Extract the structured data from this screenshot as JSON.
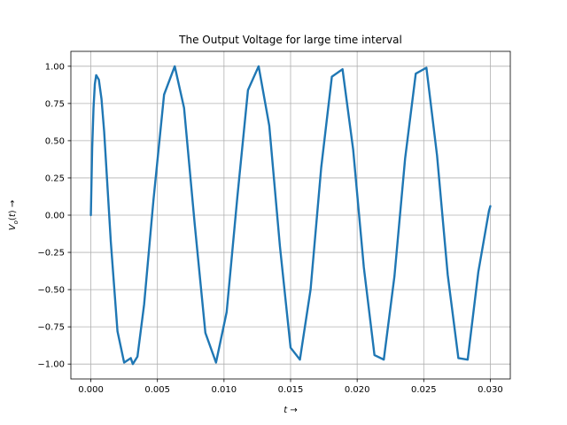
{
  "chart_data": {
    "type": "line",
    "title": "The Output Voltage for large time interval",
    "xlabel": "t →",
    "ylabel": "V_o(t) →",
    "xlim": [
      -0.0015,
      0.0315
    ],
    "ylim": [
      -1.1,
      1.1
    ],
    "x_ticks": [
      0.0,
      0.005,
      0.01,
      0.015,
      0.02,
      0.025,
      0.03
    ],
    "x_tick_labels": [
      "0.000",
      "0.005",
      "0.010",
      "0.015",
      "0.020",
      "0.025",
      "0.030"
    ],
    "y_ticks": [
      -1.0,
      -0.75,
      -0.5,
      -0.25,
      0.0,
      0.25,
      0.5,
      0.75,
      1.0
    ],
    "y_tick_labels": [
      "−1.00",
      "−0.75",
      "−0.50",
      "−0.25",
      "0.00",
      "0.25",
      "0.50",
      "0.75",
      "1.00"
    ],
    "grid": true,
    "line_color": "#1f77b4",
    "series": [
      {
        "x": [
          0.0,
          0.0001,
          0.0002,
          0.0003,
          0.0004,
          0.0006,
          0.0008,
          0.001,
          0.0015,
          0.002,
          0.0025,
          0.003,
          0.00315,
          0.0035,
          0.004,
          0.0047,
          0.0055,
          0.0063,
          0.007,
          0.0078,
          0.0086,
          0.0094,
          0.0102,
          0.011,
          0.0118,
          0.0126,
          0.0134,
          0.0142,
          0.015,
          0.0157,
          0.0165,
          0.0173,
          0.0181,
          0.0189,
          0.0197,
          0.0205,
          0.0213,
          0.022,
          0.0228,
          0.0236,
          0.0244,
          0.0252,
          0.026,
          0.0268,
          0.0276,
          0.0283,
          0.0291,
          0.0299,
          0.03
        ],
        "y": [
          0.0,
          0.45,
          0.72,
          0.88,
          0.94,
          0.91,
          0.78,
          0.56,
          -0.18,
          -0.78,
          -0.99,
          -0.96,
          -1.0,
          -0.95,
          -0.6,
          0.1,
          0.81,
          1.0,
          0.72,
          -0.06,
          -0.79,
          -0.99,
          -0.65,
          0.12,
          0.84,
          1.0,
          0.6,
          -0.21,
          -0.89,
          -0.97,
          -0.5,
          0.32,
          0.93,
          0.98,
          0.44,
          -0.35,
          -0.94,
          -0.97,
          -0.41,
          0.38,
          0.95,
          0.99,
          0.4,
          -0.4,
          -0.96,
          -0.97,
          -0.38,
          0.03,
          0.06
        ]
      }
    ]
  }
}
